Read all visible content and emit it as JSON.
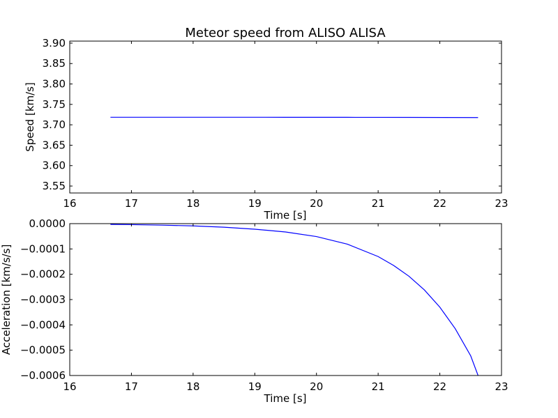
{
  "chart_data": [
    {
      "type": "line",
      "title": "Meteor speed from  ALISO ALISA",
      "xlabel": "Time [s]",
      "ylabel": "Speed [km/s]",
      "xlim": [
        16,
        23
      ],
      "ylim": [
        3.533,
        3.905
      ],
      "xticks": [
        "16",
        "17",
        "18",
        "19",
        "20",
        "21",
        "22",
        "23"
      ],
      "yticks": [
        "3.55",
        "3.60",
        "3.65",
        "3.70",
        "3.75",
        "3.80",
        "3.85",
        "3.90"
      ],
      "grid": false,
      "series": [
        {
          "color": "#0000ff",
          "x": [
            16.66,
            17.5,
            18.5,
            19.5,
            20.5,
            21.5,
            22.62
          ],
          "y": [
            3.7185,
            3.7185,
            3.7185,
            3.7184,
            3.7183,
            3.7182,
            3.7177
          ]
        }
      ]
    },
    {
      "type": "line",
      "title": "",
      "xlabel": "Time [s]",
      "ylabel": "Acceleration [km/s/s]",
      "xlim": [
        16,
        23
      ],
      "ylim": [
        -0.0006,
        0.0
      ],
      "xticks": [
        "16",
        "17",
        "18",
        "19",
        "20",
        "21",
        "22",
        "23"
      ],
      "yticks": [
        "−0.0006",
        "−0.0005",
        "−0.0004",
        "−0.0003",
        "−0.0002",
        "−0.0001",
        "0.0000"
      ],
      "grid": false,
      "series": [
        {
          "color": "#0000ff",
          "x": [
            16.66,
            17.0,
            17.5,
            18.0,
            18.5,
            19.0,
            19.5,
            20.0,
            20.5,
            21.0,
            21.25,
            21.5,
            21.75,
            22.0,
            22.25,
            22.5,
            22.62
          ],
          "y": [
            -3e-06,
            -4e-06,
            -6e-06,
            -9e-06,
            -1.4e-05,
            -2.2e-05,
            -3.3e-05,
            -5.1e-05,
            -8.1e-05,
            -0.00013,
            -0.000165,
            -0.000208,
            -0.000262,
            -0.00033,
            -0.000415,
            -0.000522,
            -0.0006
          ]
        }
      ]
    }
  ]
}
